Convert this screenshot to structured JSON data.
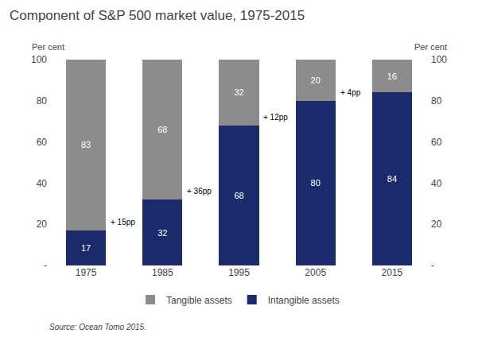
{
  "chart_data": {
    "type": "bar",
    "title": "Component of S&P 500 market value, 1975-2015",
    "categories": [
      "1975",
      "1985",
      "1995",
      "2005",
      "2015"
    ],
    "series": [
      {
        "name": "Intangible assets",
        "color": "#1B2A6B",
        "values": [
          17,
          32,
          68,
          80,
          84
        ]
      },
      {
        "name": "Tangible assets",
        "color": "#8C8C8C",
        "values": [
          83,
          68,
          32,
          20,
          16
        ]
      }
    ],
    "stacked": true,
    "data_labels": true,
    "ylim": [
      0,
      100
    ],
    "yticks": [
      {
        "value": 0,
        "label": "-"
      },
      20,
      40,
      60,
      80,
      100
    ],
    "y2lim": [
      0,
      100
    ],
    "y2ticks": [
      {
        "value": 0,
        "label": "-"
      },
      20,
      40,
      60,
      80,
      100
    ],
    "ylabel": "Per cent",
    "y2label": "Per cent",
    "annotations": [
      "+ 15pp",
      "+ 36pp",
      "+ 12pp",
      "+ 4pp"
    ],
    "source": "Source: Ocean Tomo 2015.",
    "legend": "bottom",
    "grid": false
  }
}
